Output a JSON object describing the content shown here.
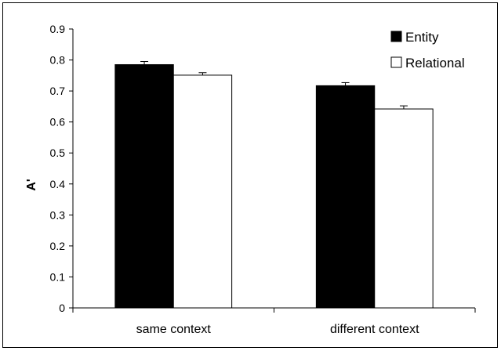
{
  "chart_data": {
    "type": "bar",
    "categories": [
      "same context",
      "different context"
    ],
    "series": [
      {
        "name": "Entity",
        "values": [
          0.785,
          0.717
        ],
        "errors": [
          0.01,
          0.01
        ],
        "fill": "#000000"
      },
      {
        "name": "Relational",
        "values": [
          0.751,
          0.642
        ],
        "errors": [
          0.008,
          0.01
        ],
        "fill": "#ffffff"
      }
    ],
    "ylabel": "A'",
    "xlabel": "",
    "ylim": [
      0,
      0.9
    ],
    "yticks": [
      "0",
      "0.1",
      "0.2",
      "0.3",
      "0.4",
      "0.5",
      "0.6",
      "0.7",
      "0.8",
      "0.9"
    ],
    "legend_position": "top-right",
    "grid": false
  }
}
